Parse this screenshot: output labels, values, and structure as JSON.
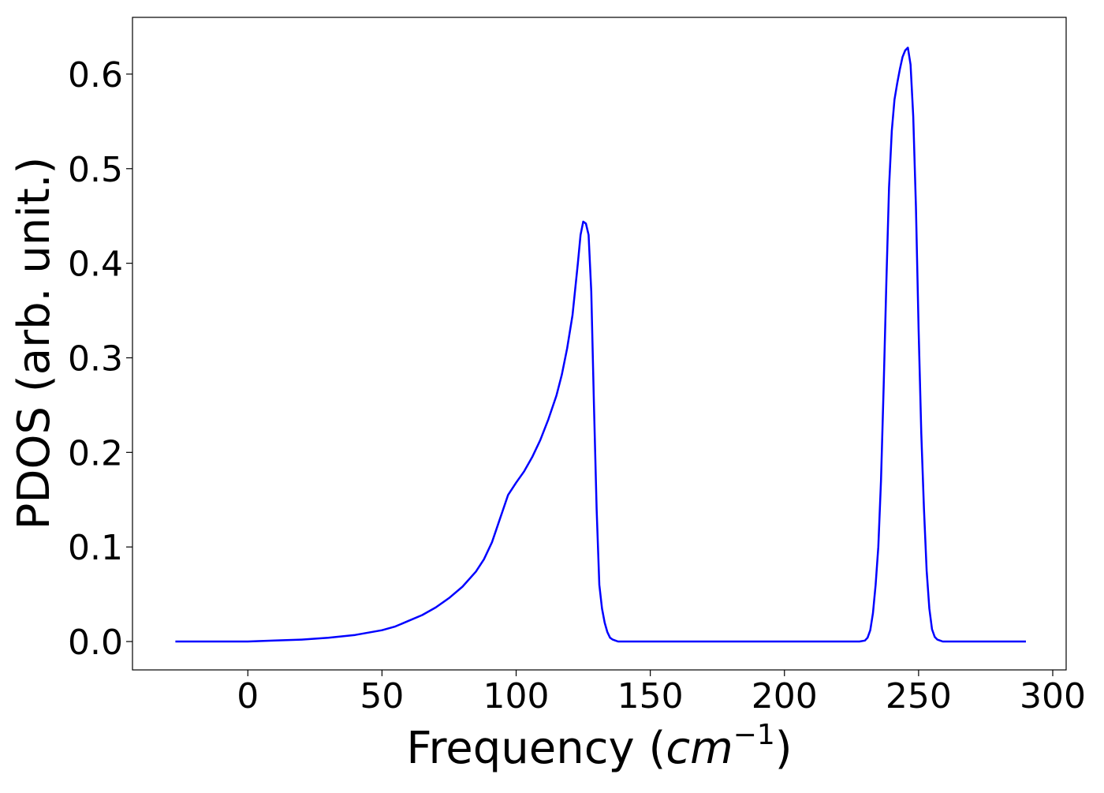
{
  "chart_data": {
    "type": "line",
    "title": "",
    "xlabel": "Frequency (cm⁻¹)",
    "xlabel_parts": {
      "prefix": "Frequency (",
      "unit": "cm",
      "exponent": "−1",
      "suffix": ")"
    },
    "ylabel": "PDOS (arb. unit.)",
    "xlim": [
      -43,
      305
    ],
    "ylim": [
      -0.03,
      0.66
    ],
    "xticks": [
      0,
      50,
      100,
      150,
      200,
      250,
      300
    ],
    "xtick_labels": [
      "0",
      "50",
      "100",
      "150",
      "200",
      "250",
      "300"
    ],
    "yticks": [
      0.0,
      0.1,
      0.2,
      0.3,
      0.4,
      0.5,
      0.6
    ],
    "ytick_labels": [
      "0.0",
      "0.1",
      "0.2",
      "0.3",
      "0.4",
      "0.5",
      "0.6"
    ],
    "grid": false,
    "series": [
      {
        "color": "#0000ff",
        "x": [
          -27,
          0,
          10,
          20,
          30,
          40,
          50,
          55,
          60,
          65,
          70,
          75,
          80,
          85,
          88,
          91,
          94,
          97,
          100,
          103,
          106,
          109,
          112,
          115,
          117,
          119,
          121,
          123,
          124,
          125,
          126,
          127,
          128,
          129,
          130,
          131,
          132,
          133,
          134,
          135,
          136,
          137,
          138,
          140,
          150,
          200,
          228,
          230,
          231,
          232,
          233,
          234,
          235,
          236,
          237,
          238,
          239,
          240,
          241,
          242,
          243,
          244,
          245,
          246,
          247,
          248,
          249,
          250,
          251,
          252,
          253,
          254,
          255,
          256,
          257,
          258,
          259,
          260,
          261,
          262,
          263,
          264,
          265,
          266,
          267,
          268,
          269,
          270,
          272,
          290
        ],
        "y": [
          0.0,
          0.0,
          0.001,
          0.002,
          0.004,
          0.007,
          0.012,
          0.016,
          0.022,
          0.028,
          0.036,
          0.046,
          0.058,
          0.074,
          0.087,
          0.105,
          0.13,
          0.155,
          0.168,
          0.18,
          0.195,
          0.213,
          0.235,
          0.26,
          0.282,
          0.31,
          0.345,
          0.4,
          0.43,
          0.444,
          0.442,
          0.43,
          0.37,
          0.25,
          0.14,
          0.06,
          0.035,
          0.02,
          0.01,
          0.004,
          0.002,
          0.001,
          0.0,
          0.0,
          0.0,
          0.0,
          0.0,
          0.001,
          0.004,
          0.012,
          0.03,
          0.06,
          0.1,
          0.17,
          0.27,
          0.38,
          0.48,
          0.54,
          0.573,
          0.59,
          0.605,
          0.618,
          0.625,
          0.628,
          0.61,
          0.555,
          0.46,
          0.33,
          0.22,
          0.14,
          0.075,
          0.035,
          0.013,
          0.005,
          0.002,
          0.001,
          0.0,
          0.0,
          0.0,
          0.0,
          0.0,
          0.0,
          0.0,
          0.0,
          0.0,
          0.0,
          0.0,
          0.0,
          0.0,
          0.0
        ]
      }
    ]
  }
}
